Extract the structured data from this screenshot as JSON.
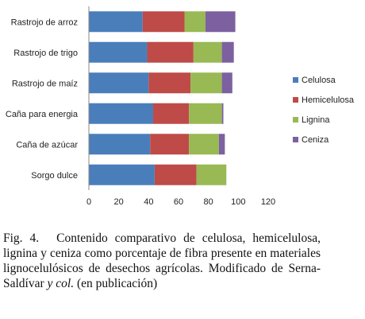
{
  "chart_data": {
    "type": "bar",
    "orientation": "horizontal",
    "stacked": true,
    "categories": [
      "Rastrojo de arroz",
      "Rastrojo de trigo",
      "Rastrojo de maíz",
      "Caña para energia",
      "Caña de azúcar",
      "Sorgo dulce"
    ],
    "series": [
      {
        "name": "Celulosa",
        "color": "#4a7ebb",
        "values": [
          36,
          39,
          40,
          43,
          41,
          44
        ]
      },
      {
        "name": "Hemicelulosa",
        "color": "#be4b48",
        "values": [
          28,
          31,
          28,
          24,
          26,
          28
        ]
      },
      {
        "name": "Lignina",
        "color": "#98b954",
        "values": [
          14,
          19,
          21,
          22,
          20,
          20
        ]
      },
      {
        "name": "Ceniza",
        "color": "#7d60a0",
        "values": [
          20,
          8,
          7,
          1,
          4,
          0
        ]
      }
    ],
    "xlim": [
      0,
      120
    ],
    "xticks": [
      0,
      20,
      40,
      60,
      80,
      100,
      120
    ],
    "grid": false,
    "legend_position": "right",
    "title": "",
    "xlabel": "",
    "ylabel": ""
  },
  "caption": {
    "label": "Fig. 4.",
    "text_before": "Contenido comparativo de celulosa, hemicelulosa, lignina y ceniza como porcentaje de fibra presente en materiales lignocelulósicos de desechos agrícolas. Modificado de Serna-Saldívar ",
    "italic": "y col.",
    "text_after": " (en publicación)"
  }
}
